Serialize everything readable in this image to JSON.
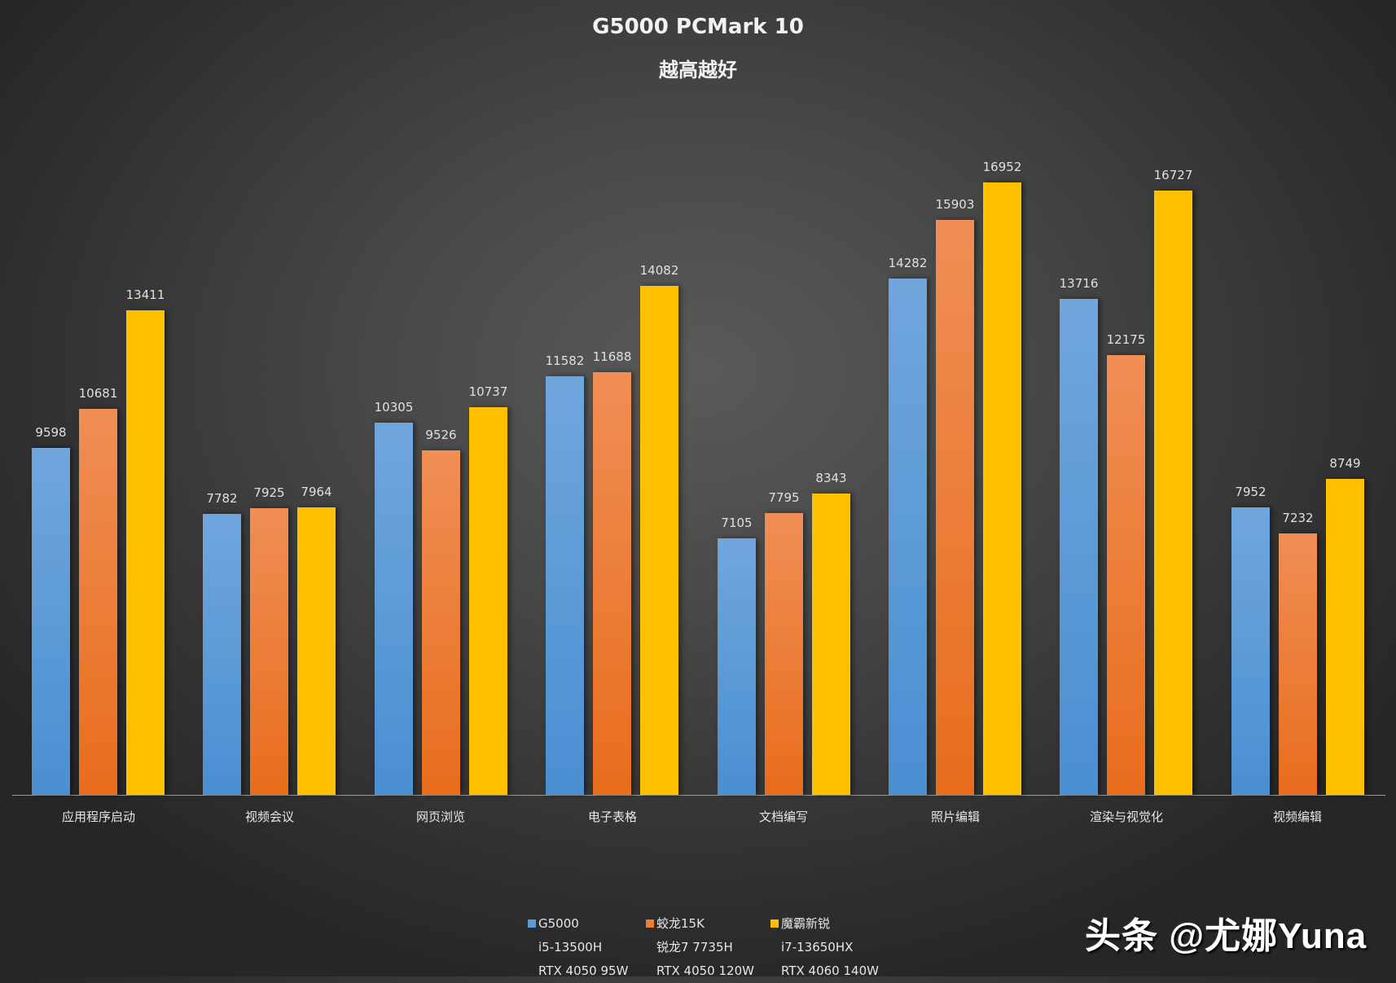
{
  "chart_data": {
    "type": "bar",
    "title": "G5000  PCMark 10",
    "subtitle": "越高越好",
    "xlabel": "",
    "ylabel": "",
    "grid": false,
    "legend_position": "bottom",
    "categories": [
      "应用程序启动",
      "视频会议",
      "网页浏览",
      "电子表格",
      "文档编写",
      "照片编辑",
      "渲染与视觉化",
      "视频编辑"
    ],
    "series": [
      {
        "name": "G5000",
        "details": [
          "i5-13500H",
          "RTX 4050 95W"
        ],
        "color": "#5b9bd5",
        "values": [
          9598,
          7782,
          10305,
          11582,
          7105,
          14282,
          13716,
          7952
        ]
      },
      {
        "name": "蛟龙15K",
        "details": [
          "锐龙7 7735H",
          "RTX 4050 120W"
        ],
        "color": "#ed7d31",
        "values": [
          10681,
          7925,
          9526,
          11688,
          7795,
          15903,
          12175,
          7232
        ]
      },
      {
        "name": "魔霸新锐",
        "details": [
          "i7-13650HX",
          "RTX 4060 140W"
        ],
        "color": "#ffc000",
        "values": [
          13411,
          7964,
          10737,
          14082,
          8343,
          16952,
          16727,
          8749
        ]
      }
    ],
    "ylim": [
      0,
      17000
    ]
  },
  "watermark": "头条 @尤娜Yuna"
}
